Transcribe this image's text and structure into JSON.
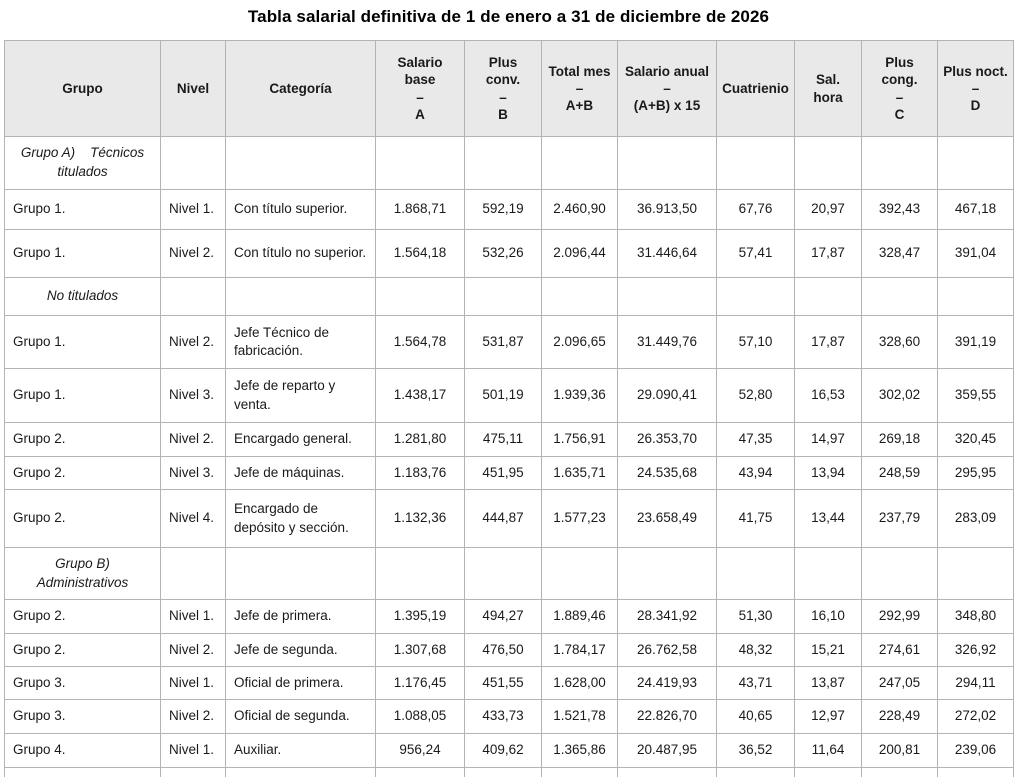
{
  "page": {
    "title": "Tabla salarial definitiva de 1 de enero a 31 de diciembre de 2026"
  },
  "table": {
    "columns": [
      {
        "label": "Grupo"
      },
      {
        "label": "Nivel"
      },
      {
        "label": "Categoría"
      },
      {
        "label": "Salario\nbase\n–\nA"
      },
      {
        "label": "Plus\nconv.\n–\nB"
      },
      {
        "label": "Total mes\n–\nA+B"
      },
      {
        "label": "Salario anual\n–\n(A+B) x 15"
      },
      {
        "label": "Cuatrienio"
      },
      {
        "label": "Sal.\nhora"
      },
      {
        "label": "Plus\ncong.\n–\nC"
      },
      {
        "label": "Plus noct.\n–\nD"
      }
    ],
    "rows": [
      {
        "type": "section",
        "cells": [
          "Grupo A)    Técnicos\ntitulados",
          "",
          "",
          "",
          "",
          "",
          "",
          "",
          "",
          "",
          ""
        ]
      },
      {
        "type": "data",
        "cells": [
          "Grupo 1.",
          "Nivel 1.",
          "Con título superior.",
          "1.868,71",
          "592,19",
          "2.460,90",
          "36.913,50",
          "67,76",
          "20,97",
          "392,43",
          "467,18"
        ]
      },
      {
        "type": "data",
        "cells": [
          "Grupo 1.",
          "Nivel 2.",
          "Con título no superior.",
          "1.564,18",
          "532,26",
          "2.096,44",
          "31.446,64",
          "57,41",
          "17,87",
          "328,47",
          "391,04"
        ]
      },
      {
        "type": "section",
        "cells": [
          "No titulados",
          "",
          "",
          "",
          "",
          "",
          "",
          "",
          "",
          "",
          ""
        ]
      },
      {
        "type": "data",
        "cells": [
          "Grupo 1.",
          "Nivel 2.",
          "Jefe Técnico de fabricación.",
          "1.564,78",
          "531,87",
          "2.096,65",
          "31.449,76",
          "57,10",
          "17,87",
          "328,60",
          "391,19"
        ]
      },
      {
        "type": "data",
        "cells": [
          "Grupo 1.",
          "Nivel 3.",
          "Jefe de reparto y venta.",
          "1.438,17",
          "501,19",
          "1.939,36",
          "29.090,41",
          "52,80",
          "16,53",
          "302,02",
          "359,55"
        ]
      },
      {
        "type": "data",
        "cells": [
          "Grupo 2.",
          "Nivel 2.",
          "Encargado general.",
          "1.281,80",
          "475,11",
          "1.756,91",
          "26.353,70",
          "47,35",
          "14,97",
          "269,18",
          "320,45"
        ]
      },
      {
        "type": "data",
        "cells": [
          "Grupo 2.",
          "Nivel 3.",
          "Jefe de máquinas.",
          "1.183,76",
          "451,95",
          "1.635,71",
          "24.535,68",
          "43,94",
          "13,94",
          "248,59",
          "295,95"
        ]
      },
      {
        "type": "data",
        "cells": [
          "Grupo 2.",
          "Nivel 4.",
          "Encargado de depósito y sección.",
          "1.132,36",
          "444,87",
          "1.577,23",
          "23.658,49",
          "41,75",
          "13,44",
          "237,79",
          "283,09"
        ]
      },
      {
        "type": "section",
        "cells": [
          "Grupo B)\nAdministrativos",
          "",
          "",
          "",
          "",
          "",
          "",
          "",
          "",
          "",
          ""
        ]
      },
      {
        "type": "data",
        "cells": [
          "Grupo 2.",
          "Nivel 1.",
          "Jefe de primera.",
          "1.395,19",
          "494,27",
          "1.889,46",
          "28.341,92",
          "51,30",
          "16,10",
          "292,99",
          "348,80"
        ]
      },
      {
        "type": "data",
        "cells": [
          "Grupo 2.",
          "Nivel 2.",
          "Jefe de segunda.",
          "1.307,68",
          "476,50",
          "1.784,17",
          "26.762,58",
          "48,32",
          "15,21",
          "274,61",
          "326,92"
        ]
      },
      {
        "type": "data",
        "cells": [
          "Grupo 3.",
          "Nivel 1.",
          "Oficial de primera.",
          "1.176,45",
          "451,55",
          "1.628,00",
          "24.419,93",
          "43,71",
          "13,87",
          "247,05",
          "294,11"
        ]
      },
      {
        "type": "data",
        "cells": [
          "Grupo 3.",
          "Nivel 2.",
          "Oficial de segunda.",
          "1.088,05",
          "433,73",
          "1.521,78",
          "22.826,70",
          "40,65",
          "12,97",
          "228,49",
          "272,02"
        ]
      },
      {
        "type": "data",
        "cells": [
          "Grupo 4.",
          "Nivel 1.",
          "Auxiliar.",
          "956,24",
          "409,62",
          "1.365,86",
          "20.487,95",
          "36,52",
          "11,64",
          "200,81",
          "239,06"
        ]
      }
    ]
  }
}
